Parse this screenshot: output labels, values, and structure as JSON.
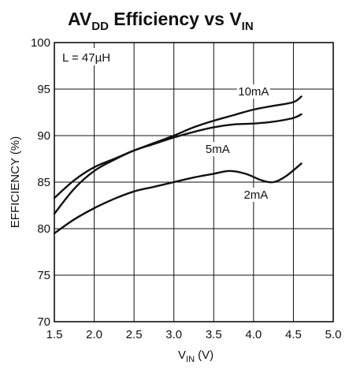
{
  "title": {
    "main": "AV",
    "sub1": "DD",
    "mid": " Efficiency vs V",
    "sub2": "IN"
  },
  "note": "L = 47µH",
  "xlabel": {
    "main": "V",
    "sub": "IN",
    "unit": " (V)"
  },
  "ylabel": "EFFICIENCY (%)",
  "chart_data": {
    "type": "line",
    "title": "AVDD Efficiency vs VIN",
    "xlabel": "VIN (V)",
    "ylabel": "EFFICIENCY (%)",
    "xlim": [
      1.5,
      5.0
    ],
    "ylim": [
      70,
      100
    ],
    "grid": true,
    "x_ticks": [
      "1.5",
      "2.0",
      "2.5",
      "3.0",
      "3.5",
      "4.0",
      "4.5",
      "5.0"
    ],
    "y_ticks": [
      "70",
      "75",
      "80",
      "85",
      "90",
      "95",
      "100"
    ],
    "annotations": [
      "L = 47µH"
    ],
    "series": [
      {
        "name": "10mA",
        "x": [
          1.5,
          1.75,
          2.0,
          2.25,
          2.5,
          2.75,
          3.0,
          3.25,
          3.5,
          3.75,
          4.0,
          4.25,
          4.5,
          4.6
        ],
        "y": [
          83.3,
          85.2,
          86.6,
          87.5,
          88.4,
          89.2,
          90.0,
          90.9,
          91.6,
          92.2,
          92.8,
          93.2,
          93.6,
          94.2
        ]
      },
      {
        "name": "5mA",
        "x": [
          1.5,
          1.75,
          2.0,
          2.25,
          2.5,
          2.75,
          3.0,
          3.25,
          3.5,
          3.75,
          4.0,
          4.25,
          4.5,
          4.6
        ],
        "y": [
          81.6,
          84.3,
          86.2,
          87.4,
          88.4,
          89.1,
          89.8,
          90.4,
          90.9,
          91.2,
          91.3,
          91.5,
          91.9,
          92.3
        ]
      },
      {
        "name": "2mA",
        "x": [
          1.5,
          1.75,
          2.0,
          2.25,
          2.5,
          2.75,
          3.0,
          3.25,
          3.5,
          3.7,
          3.9,
          4.1,
          4.25,
          4.4,
          4.6
        ],
        "y": [
          79.5,
          81.0,
          82.2,
          83.2,
          84.0,
          84.5,
          85.0,
          85.5,
          85.9,
          86.2,
          85.9,
          85.2,
          85.0,
          85.6,
          87.0
        ]
      }
    ],
    "series_labels": [
      {
        "series": "10mA",
        "x": 4.0,
        "y": 94.4
      },
      {
        "series": "5mA",
        "x": 3.55,
        "y": 88.2
      },
      {
        "series": "2mA",
        "x": 4.03,
        "y": 83.3
      }
    ]
  }
}
